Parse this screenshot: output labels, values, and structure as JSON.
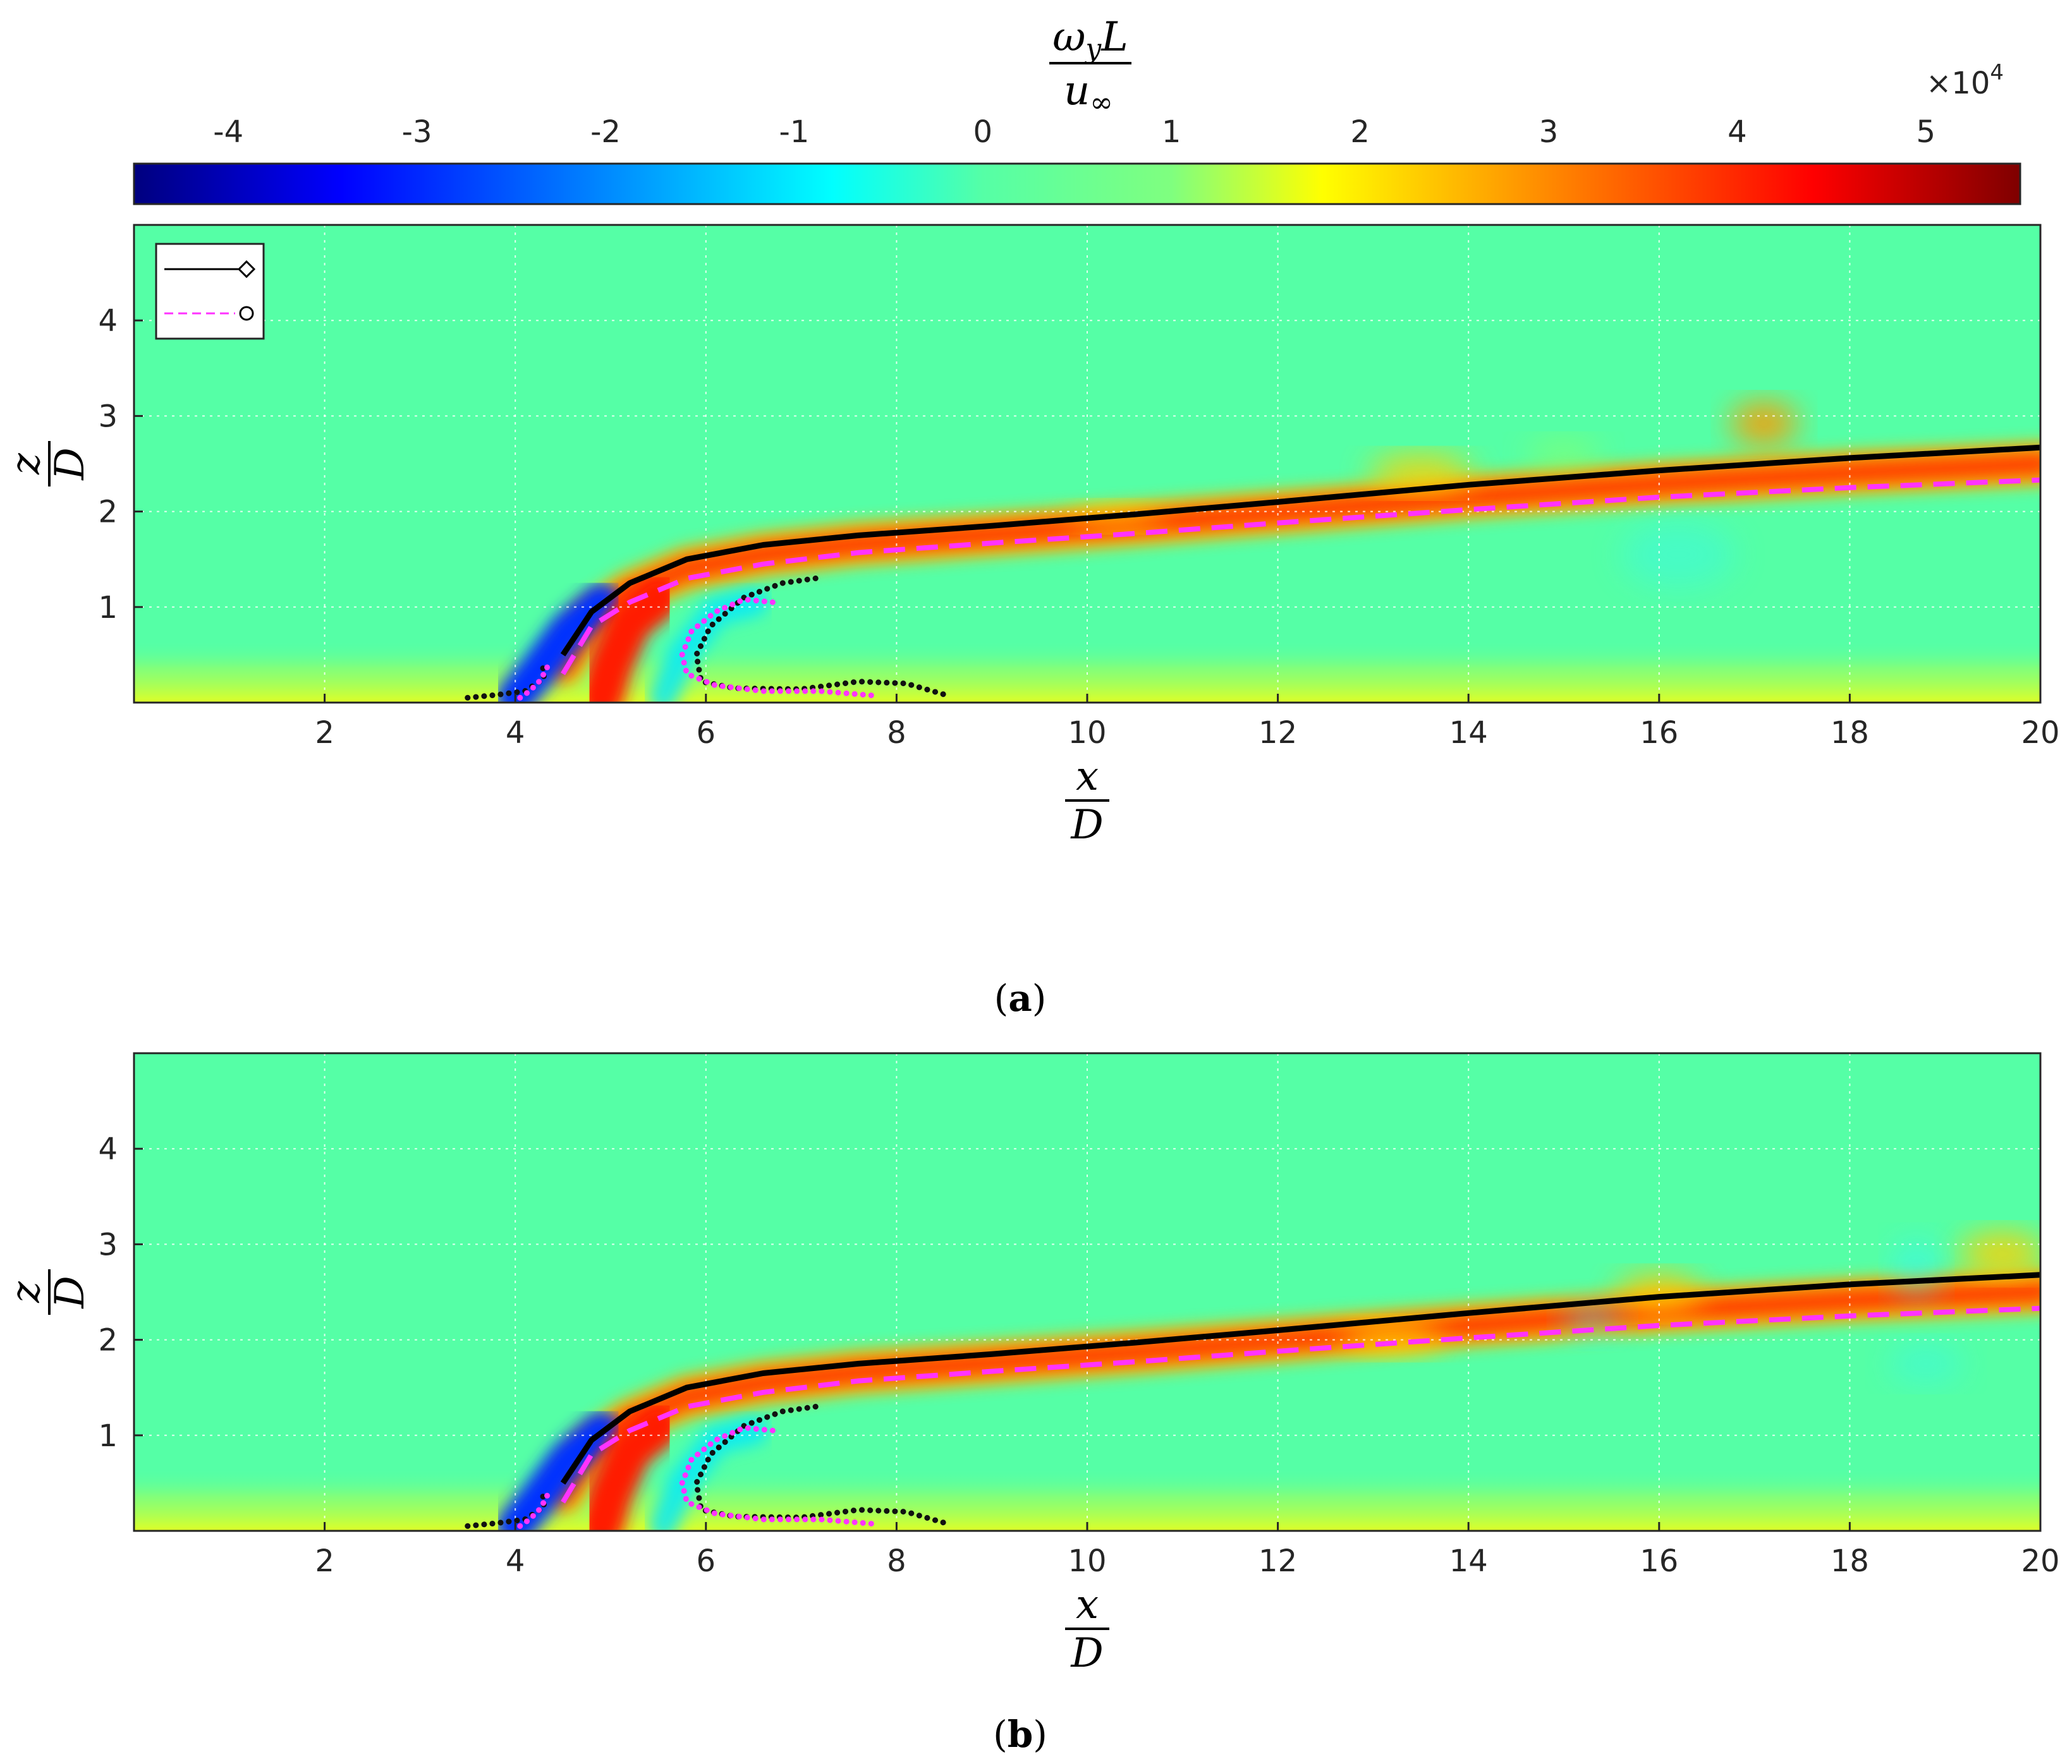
{
  "colorbar": {
    "label_numerator": "ω",
    "label_numerator_sub": "y",
    "label_numerator_tail": "L",
    "label_denominator": "u",
    "label_denominator_sub": "∞",
    "multiplier_base": "×10",
    "multiplier_exp": "4",
    "ticks": [
      "-4",
      "-3",
      "-2",
      "-1",
      "0",
      "1",
      "2",
      "3",
      "4",
      "5"
    ],
    "tick_values": [
      -4,
      -3,
      -2,
      -1,
      0,
      1,
      2,
      3,
      4,
      5
    ],
    "range": [
      -4.5,
      5.5
    ],
    "colormap": [
      "#00007f",
      "#0000ff",
      "#007fff",
      "#00ffff",
      "#55ffa6",
      "#7fff7f",
      "#ffff00",
      "#ff7f00",
      "#ff0000",
      "#7f0000"
    ]
  },
  "axes_labels": {
    "x_num": "x",
    "x_den": "D",
    "z_num": "z",
    "z_den": "D"
  },
  "panels": [
    {
      "caption_open": "(",
      "caption_letter": "a",
      "caption_close": ")"
    },
    {
      "caption_open": "(",
      "caption_letter": "b",
      "caption_close": ")"
    }
  ],
  "chart_data": [
    {
      "type": "heatmap",
      "panel": "a",
      "xlim": [
        0,
        20
      ],
      "ylim": [
        0,
        5
      ],
      "xticks": [
        "2",
        "4",
        "6",
        "8",
        "10",
        "12",
        "14",
        "16",
        "18",
        "20"
      ],
      "yticks": [
        "1",
        "2",
        "3",
        "4"
      ],
      "grid": true,
      "legend": {
        "placement": "top-left",
        "entries": [
          {
            "line": "solid",
            "color": "#000000",
            "marker": "diamond"
          },
          {
            "line": "dashed",
            "color": "#ff33ff",
            "marker": "circle"
          }
        ]
      },
      "series": [
        {
          "style": "solid-black",
          "x": [
            4.5,
            4.8,
            5.2,
            5.8,
            6.6,
            7.6,
            9,
            10.5,
            12,
            14,
            16,
            18,
            20
          ],
          "y": [
            0.5,
            0.95,
            1.25,
            1.5,
            1.65,
            1.75,
            1.85,
            1.97,
            2.1,
            2.28,
            2.43,
            2.56,
            2.67
          ]
        },
        {
          "style": "dashed-magenta",
          "x": [
            4.5,
            4.8,
            5.2,
            5.8,
            6.6,
            7.6,
            9,
            10.5,
            12,
            14,
            16,
            18,
            20
          ],
          "y": [
            0.3,
            0.8,
            1.05,
            1.3,
            1.45,
            1.57,
            1.67,
            1.77,
            1.88,
            2.02,
            2.15,
            2.25,
            2.33
          ]
        },
        {
          "style": "dotted-black",
          "x": [
            3.5,
            3.8,
            4.1,
            4.3,
            4.3,
            4.25
          ],
          "y": [
            0.05,
            0.08,
            0.12,
            0.25,
            0.35,
            0.4
          ]
        },
        {
          "style": "dotted-magenta",
          "x": [
            4.05,
            4.15,
            4.25,
            4.3,
            4.35
          ],
          "y": [
            0.05,
            0.12,
            0.22,
            0.3,
            0.4
          ]
        },
        {
          "style": "dotted-black",
          "x": [
            7.15,
            6.8,
            6.4,
            6.05,
            5.9,
            5.95,
            6.3,
            7,
            7.6,
            8.1,
            8.55
          ],
          "y": [
            1.3,
            1.25,
            1.1,
            0.8,
            0.5,
            0.22,
            0.15,
            0.14,
            0.22,
            0.2,
            0.07
          ]
        },
        {
          "style": "dotted-magenta",
          "x": [
            6.7,
            6.4,
            6.1,
            5.85,
            5.75,
            5.8,
            6.1,
            6.6,
            7.2,
            7.8
          ],
          "y": [
            1.05,
            1.08,
            0.95,
            0.75,
            0.5,
            0.3,
            0.18,
            0.12,
            0.12,
            0.07
          ]
        }
      ]
    },
    {
      "type": "heatmap",
      "panel": "b",
      "xlim": [
        0,
        20
      ],
      "ylim": [
        0,
        5
      ],
      "xticks": [
        "2",
        "4",
        "6",
        "8",
        "10",
        "12",
        "14",
        "16",
        "18",
        "20"
      ],
      "yticks": [
        "1",
        "2",
        "3",
        "4"
      ],
      "grid": true,
      "series": [
        {
          "style": "solid-black",
          "x": [
            4.5,
            4.8,
            5.2,
            5.8,
            6.6,
            7.6,
            9,
            10.5,
            12,
            14,
            16,
            18,
            20
          ],
          "y": [
            0.5,
            0.95,
            1.25,
            1.5,
            1.65,
            1.75,
            1.85,
            1.97,
            2.1,
            2.28,
            2.45,
            2.58,
            2.68
          ]
        },
        {
          "style": "dashed-magenta",
          "x": [
            4.5,
            4.8,
            5.2,
            5.8,
            6.6,
            7.6,
            9,
            10.5,
            12,
            14,
            16,
            18,
            20
          ],
          "y": [
            0.3,
            0.8,
            1.05,
            1.3,
            1.45,
            1.57,
            1.67,
            1.77,
            1.88,
            2.02,
            2.15,
            2.25,
            2.33
          ]
        },
        {
          "style": "dotted-black",
          "x": [
            3.5,
            3.8,
            4.1,
            4.3,
            4.3,
            4.25
          ],
          "y": [
            0.05,
            0.08,
            0.12,
            0.25,
            0.35,
            0.4
          ]
        },
        {
          "style": "dotted-magenta",
          "x": [
            4.05,
            4.15,
            4.25,
            4.3,
            4.35
          ],
          "y": [
            0.05,
            0.12,
            0.22,
            0.3,
            0.4
          ]
        },
        {
          "style": "dotted-black",
          "x": [
            7.15,
            6.8,
            6.4,
            6.05,
            5.9,
            5.95,
            6.3,
            7,
            7.6,
            8.1,
            8.55
          ],
          "y": [
            1.3,
            1.25,
            1.1,
            0.8,
            0.5,
            0.22,
            0.15,
            0.14,
            0.22,
            0.2,
            0.07
          ]
        },
        {
          "style": "dotted-magenta",
          "x": [
            6.7,
            6.4,
            6.1,
            5.85,
            5.75,
            5.8,
            6.1,
            6.6,
            7.2,
            7.8
          ],
          "y": [
            1.05,
            1.08,
            0.95,
            0.75,
            0.5,
            0.3,
            0.18,
            0.12,
            0.12,
            0.07
          ]
        }
      ]
    }
  ]
}
